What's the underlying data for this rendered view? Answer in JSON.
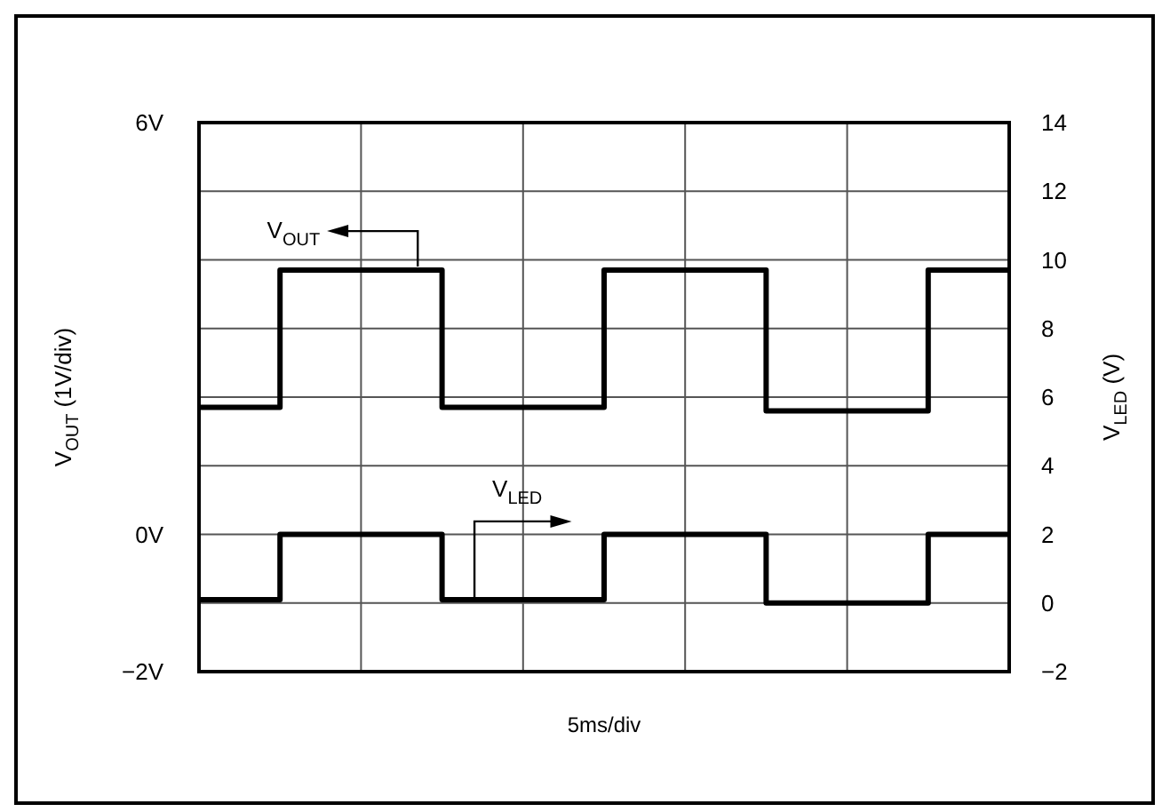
{
  "chart_data": {
    "type": "step",
    "xlabel": "5ms/div",
    "ylabel": "V$_{OUT}$ (1V/div)",
    "y2label": "V$_{LED}$ (V)",
    "categories": [
      null,
      null,
      null,
      null,
      null,
      null,
      null,
      null,
      null,
      null,
      null
    ],
    "series": [
      {
        "name": "V$_{OUT}$",
        "color": "#000000",
        "values": [
          1.85,
          3.85,
          3.85,
          1.85,
          1.85,
          3.85,
          3.85,
          1.8,
          1.8,
          3.85,
          3.85
        ]
      },
      {
        "name": "V$_{LED}$",
        "color": "#000000",
        "axis": "y2",
        "values": [
          0.1,
          2,
          2,
          0.1,
          0.1,
          2,
          2,
          0,
          0,
          2,
          2
        ]
      }
    ],
    "ylim": [
      -2,
      6
    ],
    "yticks": [
      {
        "value": -2,
        "label": "−2V"
      },
      {
        "value": -1,
        "label": null
      },
      {
        "value": 0,
        "label": "0V"
      },
      {
        "value": 1,
        "label": null
      },
      {
        "value": 2,
        "label": null
      },
      {
        "value": 3,
        "label": null
      },
      {
        "value": 4,
        "label": null
      },
      {
        "value": 5,
        "label": null
      },
      {
        "value": 6,
        "label": "6V"
      }
    ],
    "y2lim": [
      -2,
      14
    ],
    "y2ticks": [
      {
        "value": -2,
        "label": "−2"
      },
      0,
      2,
      4,
      6,
      8,
      10,
      12,
      14
    ],
    "grid": true
  }
}
